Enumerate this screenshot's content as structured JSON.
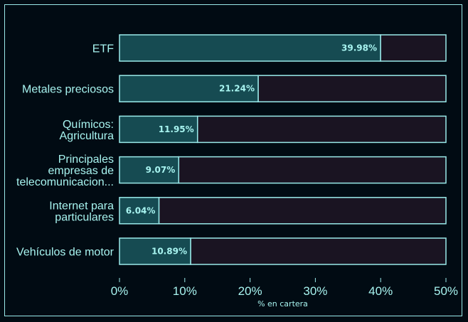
{
  "chart_data": {
    "type": "bar",
    "orientation": "horizontal",
    "categories": [
      [
        "ETF"
      ],
      [
        "Metales preciosos"
      ],
      [
        "Químicos:",
        "Agricultura"
      ],
      [
        "Principales",
        "empresas de",
        "telecomunicacion..."
      ],
      [
        "Internet para",
        "particulares"
      ],
      [
        "Vehículos de motor"
      ]
    ],
    "values": [
      39.98,
      21.24,
      11.95,
      9.07,
      6.04,
      10.89
    ],
    "value_labels": [
      "39.98%",
      "21.24%",
      "11.95%",
      "9.07%",
      "6.04%",
      "10.89%"
    ],
    "xlim": [
      0,
      50
    ],
    "xticks": [
      0,
      10,
      20,
      30,
      40,
      50
    ],
    "xtick_labels": [
      "0%",
      "10%",
      "20%",
      "30%",
      "40%",
      "50%"
    ],
    "xlabel": "% en cartera",
    "ylabel": "",
    "title": "",
    "colors": {
      "background": "#010b13",
      "bar_fill": "#164b52",
      "remainder_fill": "#1a1422",
      "outline": "#9aeaea",
      "text": "#a8f4f0"
    }
  }
}
